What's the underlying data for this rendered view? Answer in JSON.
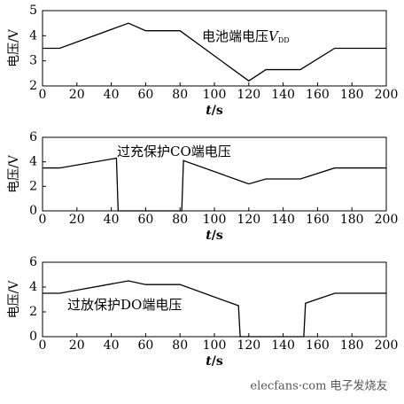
{
  "chart_data": [
    {
      "type": "line",
      "ylabel": "电压/V",
      "xlabel": {
        "var": "t",
        "unit": "/s"
      },
      "annotation": {
        "text": "电池端电压",
        "var": "V",
        "sub": "DD"
      },
      "x": [
        0,
        10,
        50,
        60,
        80,
        120,
        130,
        150,
        170,
        200
      ],
      "values": [
        3.5,
        3.5,
        4.5,
        4.2,
        4.2,
        2.2,
        2.65,
        2.65,
        3.5,
        3.5
      ],
      "color": "#000000",
      "xlim": [
        0,
        200
      ],
      "ylim": [
        2,
        5
      ],
      "xticks": [
        0,
        20,
        40,
        60,
        80,
        100,
        120,
        140,
        160,
        180,
        200
      ],
      "yticks": [
        2,
        3,
        4,
        5
      ]
    },
    {
      "type": "line",
      "ylabel": "电压/V",
      "xlabel": {
        "var": "t",
        "unit": "/s"
      },
      "annotation": {
        "text": "过充保护CO端电压"
      },
      "x": [
        0,
        10,
        43,
        44,
        81,
        82,
        120,
        130,
        150,
        170,
        200
      ],
      "values": [
        3.5,
        3.5,
        4.3,
        0,
        0,
        4.1,
        2.2,
        2.6,
        2.6,
        3.5,
        3.5
      ],
      "color": "#000000",
      "xlim": [
        0,
        200
      ],
      "ylim": [
        0,
        6
      ],
      "xticks": [
        0,
        20,
        40,
        60,
        80,
        100,
        120,
        140,
        160,
        180,
        200
      ],
      "yticks": [
        0,
        2,
        4,
        6
      ]
    },
    {
      "type": "line",
      "ylabel": "电压/V",
      "xlabel": {
        "var": "t",
        "unit": "/s"
      },
      "annotation": {
        "text": "过放保护DO端电压"
      },
      "x": [
        0,
        10,
        50,
        60,
        80,
        114,
        115,
        152,
        153,
        170,
        200
      ],
      "values": [
        3.5,
        3.5,
        4.5,
        4.2,
        4.2,
        2.5,
        0,
        0,
        2.7,
        3.5,
        3.5
      ],
      "color": "#000000",
      "xlim": [
        0,
        200
      ],
      "ylim": [
        0,
        6
      ],
      "xticks": [
        0,
        20,
        40,
        60,
        80,
        100,
        120,
        140,
        160,
        180,
        200
      ],
      "yticks": [
        0,
        2,
        4,
        6
      ]
    }
  ],
  "watermark": "elecfans·com 电子发烧友"
}
